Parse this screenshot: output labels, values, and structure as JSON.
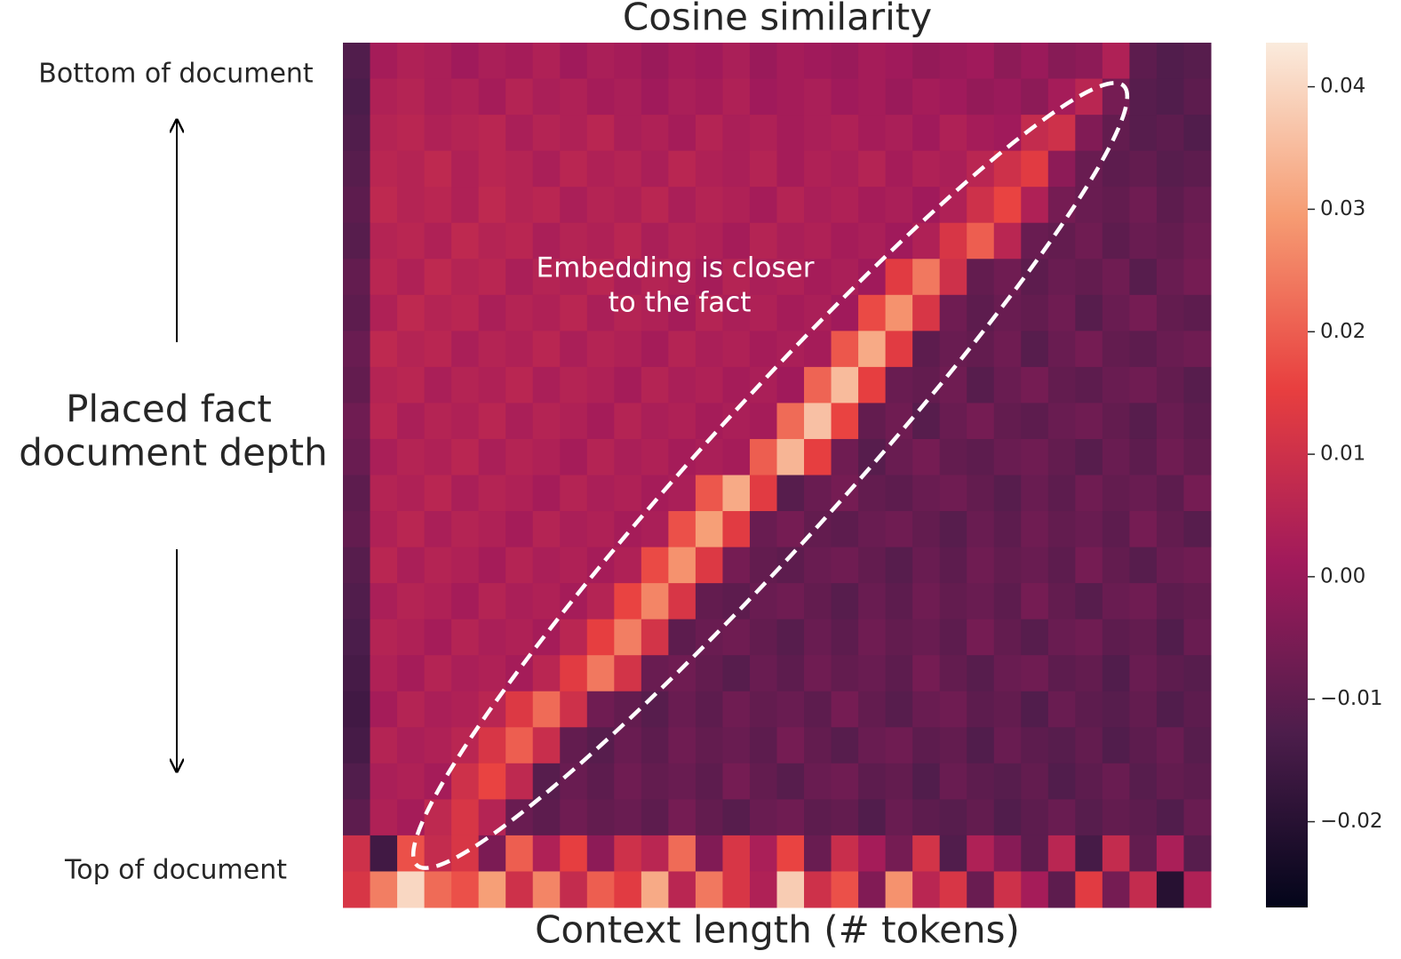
{
  "chart_data": {
    "type": "heatmap",
    "title": "Cosine similarity",
    "xlabel": "Context length (# tokens)",
    "ylabel": [
      "Placed fact",
      "document depth"
    ],
    "top_label": "Bottom of document",
    "bottom_label": "Top of document",
    "annotation": [
      "Embedding is closer",
      "to the fact"
    ],
    "colormap": [
      "#03051a",
      "#4c1d4b",
      "#a11a5b",
      "#e83f3f",
      "#f69c73",
      "#faebdd"
    ],
    "zlim": [
      -0.027,
      0.0436
    ],
    "zticks": [
      {
        "value": -0.02,
        "label": "−0.02"
      },
      {
        "value": -0.01,
        "label": "−0.01"
      },
      {
        "value": 0,
        "label": "0.00"
      },
      0.01,
      0.02,
      0.03,
      0.04
    ],
    "z": [
      [
        -0.012,
        0.002,
        0.004,
        0.003,
        0.001,
        0.003,
        0.002,
        0.004,
        0.001,
        0.003,
        0.002,
        0.0,
        0.002,
        0.001,
        0.003,
        0.0,
        0.002,
        0.001,
        0.0,
        0.002,
        0.001,
        -0.001,
        0.0,
        0.001,
        -0.002,
        0.0,
        -0.003,
        -0.002,
        0.004,
        -0.01,
        -0.012,
        -0.011
      ],
      [
        -0.013,
        0.004,
        0.005,
        0.003,
        0.004,
        0.002,
        0.005,
        0.003,
        0.004,
        0.002,
        0.003,
        0.001,
        0.003,
        0.002,
        0.004,
        0.001,
        0.002,
        0.003,
        0.001,
        0.002,
        0.0,
        0.002,
        0.001,
        -0.001,
        0.0,
        -0.002,
        0.002,
        0.006,
        -0.006,
        -0.011,
        -0.012,
        -0.01
      ],
      [
        -0.012,
        0.005,
        0.006,
        0.004,
        0.005,
        0.006,
        0.003,
        0.005,
        0.004,
        0.006,
        0.003,
        0.004,
        0.002,
        0.005,
        0.003,
        0.004,
        0.002,
        0.003,
        0.004,
        0.002,
        0.003,
        0.001,
        0.004,
        0.002,
        0.001,
        0.008,
        0.01,
        -0.004,
        -0.009,
        -0.011,
        -0.01,
        -0.012
      ],
      [
        -0.011,
        0.006,
        0.005,
        0.007,
        0.004,
        0.006,
        0.005,
        0.003,
        0.006,
        0.004,
        0.005,
        0.003,
        0.006,
        0.004,
        0.003,
        0.005,
        0.002,
        0.004,
        0.003,
        0.005,
        0.002,
        0.004,
        0.003,
        0.006,
        0.01,
        0.014,
        -0.002,
        -0.008,
        -0.01,
        -0.009,
        -0.011,
        -0.01
      ],
      [
        -0.01,
        0.007,
        0.005,
        0.006,
        0.004,
        0.007,
        0.005,
        0.006,
        0.003,
        0.005,
        0.004,
        0.006,
        0.003,
        0.005,
        0.004,
        0.002,
        0.005,
        0.003,
        0.004,
        0.002,
        0.003,
        0.001,
        0.004,
        0.01,
        0.016,
        0.004,
        -0.006,
        -0.008,
        -0.009,
        -0.007,
        -0.01,
        -0.008
      ],
      [
        -0.011,
        0.005,
        0.006,
        0.004,
        0.007,
        0.005,
        0.006,
        0.003,
        0.005,
        0.004,
        0.006,
        0.003,
        0.005,
        0.004,
        0.002,
        0.005,
        0.003,
        0.004,
        0.002,
        0.003,
        0.001,
        0.004,
        0.012,
        0.02,
        0.006,
        -0.008,
        -0.009,
        -0.007,
        -0.01,
        -0.008,
        -0.009,
        -0.007
      ],
      [
        -0.009,
        0.006,
        0.004,
        0.007,
        0.005,
        0.006,
        0.003,
        0.005,
        0.004,
        0.006,
        0.003,
        0.005,
        0.004,
        0.002,
        0.005,
        0.003,
        0.004,
        0.002,
        0.003,
        0.001,
        0.014,
        0.024,
        0.01,
        -0.009,
        -0.007,
        -0.01,
        -0.008,
        -0.009,
        -0.007,
        -0.011,
        -0.008,
        -0.006
      ],
      [
        -0.01,
        0.004,
        0.007,
        0.005,
        0.006,
        0.003,
        0.005,
        0.004,
        0.006,
        0.003,
        0.005,
        0.004,
        0.002,
        0.005,
        0.003,
        0.004,
        0.002,
        0.003,
        0.001,
        0.017,
        0.028,
        0.012,
        -0.007,
        -0.01,
        -0.008,
        -0.009,
        -0.007,
        -0.011,
        -0.008,
        -0.006,
        -0.009,
        -0.01
      ],
      [
        -0.008,
        0.007,
        0.005,
        0.006,
        0.003,
        0.005,
        0.004,
        0.006,
        0.003,
        0.005,
        0.004,
        0.002,
        0.005,
        0.003,
        0.004,
        0.002,
        0.003,
        0.002,
        0.019,
        0.032,
        0.014,
        -0.01,
        -0.008,
        -0.009,
        -0.007,
        -0.011,
        -0.008,
        -0.006,
        -0.009,
        -0.01,
        -0.008,
        -0.007
      ],
      [
        -0.009,
        0.005,
        0.006,
        0.003,
        0.005,
        0.004,
        0.006,
        0.003,
        0.005,
        0.004,
        0.002,
        0.005,
        0.003,
        0.004,
        0.002,
        0.003,
        0.001,
        0.021,
        0.035,
        0.015,
        -0.008,
        -0.009,
        -0.007,
        -0.011,
        -0.008,
        -0.006,
        -0.009,
        -0.01,
        -0.008,
        -0.007,
        -0.009,
        -0.011
      ],
      [
        -0.007,
        0.006,
        0.003,
        0.005,
        0.004,
        0.006,
        0.003,
        0.005,
        0.004,
        0.002,
        0.005,
        0.003,
        0.004,
        0.002,
        0.003,
        0.002,
        0.022,
        0.036,
        0.016,
        -0.009,
        -0.007,
        -0.011,
        -0.008,
        -0.006,
        -0.009,
        -0.01,
        -0.008,
        -0.007,
        -0.009,
        -0.011,
        -0.008,
        -0.01
      ],
      [
        -0.008,
        0.003,
        0.005,
        0.004,
        0.006,
        0.003,
        0.005,
        0.004,
        0.002,
        0.005,
        0.003,
        0.004,
        0.002,
        0.003,
        0.002,
        0.02,
        0.034,
        0.015,
        -0.007,
        -0.011,
        -0.008,
        -0.006,
        -0.009,
        -0.01,
        -0.008,
        -0.007,
        -0.009,
        -0.011,
        -0.008,
        -0.01,
        -0.007,
        -0.009
      ],
      [
        -0.01,
        0.005,
        0.004,
        0.006,
        0.003,
        0.005,
        0.004,
        0.002,
        0.005,
        0.003,
        0.004,
        0.002,
        0.003,
        0.019,
        0.032,
        0.014,
        -0.011,
        -0.008,
        -0.006,
        -0.009,
        -0.01,
        -0.008,
        -0.007,
        -0.009,
        -0.011,
        -0.008,
        -0.01,
        -0.007,
        -0.009,
        -0.008,
        -0.01,
        -0.006
      ],
      [
        -0.009,
        0.004,
        0.006,
        0.003,
        0.005,
        0.004,
        0.002,
        0.005,
        0.003,
        0.004,
        0.002,
        0.003,
        0.018,
        0.03,
        0.014,
        -0.008,
        -0.006,
        -0.009,
        -0.01,
        -0.008,
        -0.007,
        -0.009,
        -0.011,
        -0.008,
        -0.01,
        -0.007,
        -0.009,
        -0.008,
        -0.01,
        -0.006,
        -0.009,
        -0.011
      ],
      [
        -0.011,
        0.006,
        0.003,
        0.005,
        0.004,
        0.002,
        0.005,
        0.003,
        0.004,
        0.002,
        0.004,
        0.017,
        0.028,
        0.013,
        -0.006,
        -0.009,
        -0.01,
        -0.008,
        -0.007,
        -0.009,
        -0.011,
        -0.008,
        -0.01,
        -0.007,
        -0.009,
        -0.008,
        -0.01,
        -0.006,
        -0.009,
        -0.011,
        -0.008,
        -0.007
      ],
      [
        -0.012,
        0.003,
        0.005,
        0.004,
        0.002,
        0.005,
        0.003,
        0.004,
        0.002,
        0.005,
        0.016,
        0.026,
        0.012,
        -0.009,
        -0.01,
        -0.008,
        -0.007,
        -0.009,
        -0.011,
        -0.008,
        -0.01,
        -0.007,
        -0.009,
        -0.008,
        -0.01,
        -0.006,
        -0.009,
        -0.011,
        -0.008,
        -0.007,
        -0.01,
        -0.009
      ],
      [
        -0.013,
        0.005,
        0.004,
        0.002,
        0.005,
        0.003,
        0.004,
        0.002,
        0.006,
        0.015,
        0.025,
        0.011,
        -0.01,
        -0.008,
        -0.007,
        -0.009,
        -0.011,
        -0.008,
        -0.01,
        -0.007,
        -0.009,
        -0.008,
        -0.01,
        -0.006,
        -0.009,
        -0.011,
        -0.008,
        -0.007,
        -0.01,
        -0.009,
        -0.012,
        -0.008
      ],
      [
        -0.014,
        0.004,
        0.002,
        0.005,
        0.003,
        0.004,
        0.002,
        0.006,
        0.014,
        0.024,
        0.011,
        -0.008,
        -0.007,
        -0.009,
        -0.011,
        -0.008,
        -0.01,
        -0.007,
        -0.009,
        -0.008,
        -0.01,
        -0.006,
        -0.009,
        -0.011,
        -0.008,
        -0.007,
        -0.01,
        -0.009,
        -0.012,
        -0.008,
        -0.01,
        -0.011
      ],
      [
        -0.015,
        0.002,
        0.005,
        0.003,
        0.004,
        0.006,
        0.013,
        0.022,
        0.01,
        -0.007,
        -0.009,
        -0.011,
        -0.008,
        -0.01,
        -0.007,
        -0.009,
        -0.008,
        -0.01,
        -0.006,
        -0.009,
        -0.011,
        -0.008,
        -0.007,
        -0.01,
        -0.009,
        -0.012,
        -0.008,
        -0.01,
        -0.011,
        -0.009,
        -0.012,
        -0.01
      ],
      [
        -0.014,
        0.005,
        0.003,
        0.004,
        0.006,
        0.012,
        0.02,
        0.009,
        -0.009,
        -0.011,
        -0.008,
        -0.01,
        -0.007,
        -0.009,
        -0.008,
        -0.01,
        -0.006,
        -0.009,
        -0.011,
        -0.008,
        -0.007,
        -0.01,
        -0.009,
        -0.012,
        -0.008,
        -0.01,
        -0.011,
        -0.009,
        -0.012,
        -0.01,
        -0.008,
        -0.011
      ],
      [
        -0.012,
        0.003,
        0.004,
        0.002,
        0.01,
        0.016,
        0.007,
        -0.011,
        -0.008,
        -0.01,
        -0.007,
        -0.009,
        -0.008,
        -0.01,
        -0.006,
        -0.009,
        -0.011,
        -0.008,
        -0.007,
        -0.01,
        -0.009,
        -0.012,
        -0.008,
        -0.01,
        -0.011,
        -0.009,
        -0.012,
        -0.01,
        -0.008,
        -0.011,
        -0.009,
        -0.01
      ],
      [
        -0.01,
        0.004,
        0.002,
        0.007,
        0.012,
        0.005,
        -0.008,
        -0.01,
        -0.007,
        -0.009,
        -0.008,
        -0.01,
        -0.006,
        -0.009,
        -0.011,
        -0.008,
        -0.007,
        -0.01,
        -0.009,
        -0.012,
        -0.008,
        -0.01,
        -0.011,
        -0.009,
        -0.012,
        -0.01,
        -0.008,
        -0.011,
        -0.009,
        -0.01,
        -0.012,
        -0.008
      ],
      [
        0.01,
        -0.015,
        0.018,
        0.008,
        0.012,
        -0.005,
        0.02,
        0.004,
        0.015,
        -0.002,
        0.01,
        0.006,
        0.022,
        -0.004,
        0.012,
        0.003,
        0.016,
        -0.008,
        0.009,
        0.002,
        -0.006,
        0.011,
        -0.012,
        0.004,
        -0.003,
        -0.01,
        0.006,
        -0.014,
        0.008,
        -0.009,
        0.003,
        -0.011
      ],
      [
        0.012,
        0.025,
        0.04,
        0.022,
        0.018,
        0.03,
        0.01,
        0.026,
        0.008,
        0.02,
        0.014,
        0.032,
        0.006,
        0.024,
        0.012,
        0.004,
        0.038,
        0.01,
        0.018,
        -0.004,
        0.028,
        0.006,
        0.012,
        -0.008,
        0.01,
        0.002,
        -0.01,
        0.014,
        -0.006,
        0.008,
        -0.02,
        0.004
      ]
    ]
  }
}
